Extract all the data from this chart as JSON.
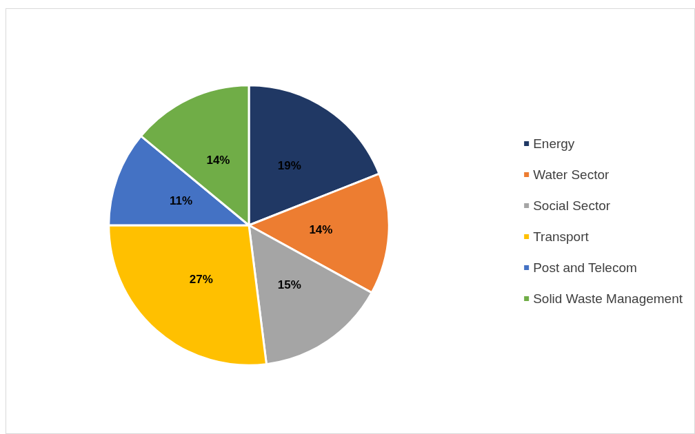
{
  "chart_data": {
    "type": "pie",
    "categories": [
      "Energy",
      "Water Sector",
      "Social Sector",
      "Transport",
      "Post and Telecom",
      "Solid Waste Management"
    ],
    "values": [
      19,
      14,
      15,
      27,
      11,
      14
    ],
    "colors": [
      "#203864",
      "#ed7d31",
      "#a5a5a5",
      "#ffc000",
      "#4472c4",
      "#70ad47"
    ],
    "value_labels": [
      "19%",
      "14%",
      "15%",
      "27%",
      "11%",
      "14%"
    ],
    "legend": "right"
  }
}
